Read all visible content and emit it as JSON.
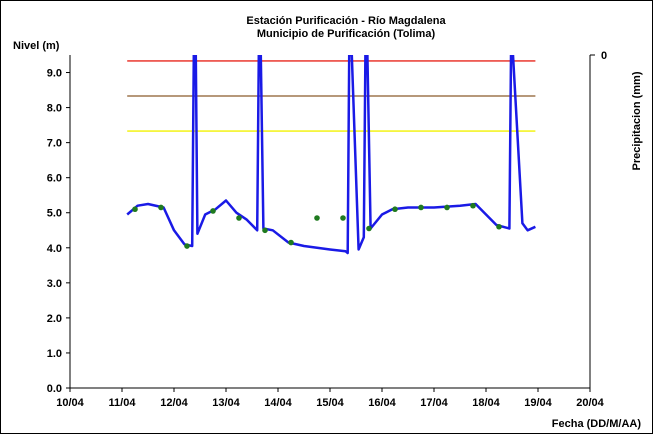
{
  "chart_data": {
    "type": "line",
    "title": "Estación Purificación - Río Magdalena",
    "subtitle": "Municipio de Purificación (Tolima)",
    "ylabel": "Nivel (m)",
    "y2label": "Precipitacion (mm)",
    "xlabel": "Fecha (DD/M/AA)",
    "y2_ticks": [
      "0"
    ],
    "ylim": [
      0,
      9.5
    ],
    "y_ticks": [
      "0.0",
      "1.0",
      "2.0",
      "3.0",
      "4.0",
      "5.0",
      "6.0",
      "7.0",
      "8.0",
      "9.0"
    ],
    "xlim": [
      0,
      10
    ],
    "x_ticks": [
      "10/04",
      "11/04",
      "12/04",
      "13/04",
      "14/04",
      "15/04",
      "16/04",
      "17/04",
      "18/04",
      "19/04",
      "20/04"
    ],
    "grid": false,
    "thresholds": [
      {
        "value": 9.33,
        "color": "#e8261c"
      },
      {
        "value": 8.33,
        "color": "#8b5a2b"
      },
      {
        "value": 7.33,
        "color": "#f2f200"
      }
    ],
    "series": [
      {
        "type": "line",
        "color": "#1a1ae6",
        "x": [
          1.1,
          1.3,
          1.5,
          1.8,
          2.0,
          2.2,
          2.35,
          2.38,
          2.42,
          2.45,
          2.6,
          2.8,
          3.0,
          3.2,
          3.4,
          3.6,
          3.63,
          3.67,
          3.72,
          3.9,
          4.2,
          4.5,
          5.0,
          5.3,
          5.34,
          5.37,
          5.42,
          5.55,
          5.65,
          5.68,
          5.72,
          5.78,
          6.0,
          6.2,
          6.5,
          7.0,
          7.5,
          7.8,
          8.0,
          8.2,
          8.45,
          8.48,
          8.52,
          8.7,
          8.8,
          8.95
        ],
        "values": [
          4.95,
          5.2,
          5.25,
          5.15,
          4.5,
          4.1,
          4.05,
          9.5,
          9.5,
          4.4,
          4.95,
          5.1,
          5.35,
          5.0,
          4.8,
          4.5,
          9.5,
          9.5,
          4.55,
          4.5,
          4.15,
          4.05,
          3.95,
          3.9,
          3.85,
          9.5,
          9.5,
          3.95,
          4.3,
          9.5,
          9.5,
          4.55,
          4.95,
          5.1,
          5.15,
          5.15,
          5.2,
          5.25,
          4.95,
          4.65,
          4.55,
          9.5,
          9.5,
          4.7,
          4.5,
          4.6
        ]
      },
      {
        "type": "scatter",
        "color": "#1f7a1f",
        "x": [
          1.25,
          1.75,
          2.25,
          2.75,
          3.25,
          3.75,
          4.25,
          4.75,
          5.25,
          5.75,
          6.25,
          6.75,
          7.25,
          7.75,
          8.25
        ],
        "values": [
          5.1,
          5.15,
          4.05,
          5.05,
          4.85,
          4.5,
          4.15,
          4.85,
          4.85,
          4.55,
          5.1,
          5.15,
          5.15,
          5.2,
          4.6
        ]
      }
    ]
  }
}
